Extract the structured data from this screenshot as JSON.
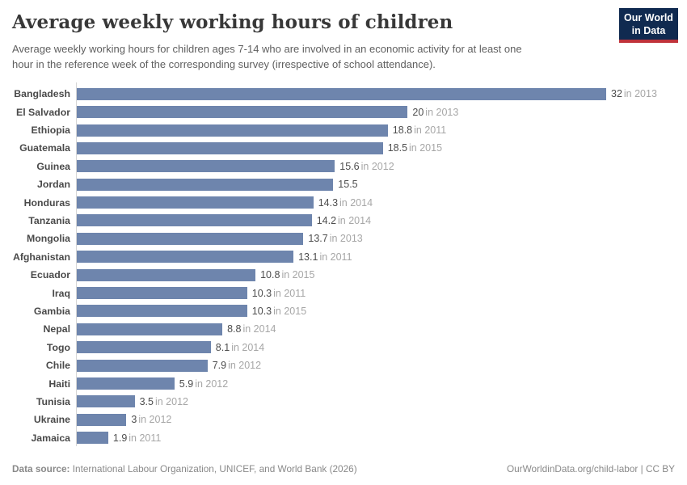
{
  "header": {
    "title": "Average weekly working hours of children",
    "subtitle": {
      "line1": "Average weekly working hours for children ages 7-14 who are involved in an economic activity for at least one",
      "line2": "hour in the reference week of the corresponding survey (irrespective of school attendance)."
    },
    "logo": {
      "line1": "Our World",
      "line2": "in Data"
    }
  },
  "chart_data": {
    "type": "bar",
    "orientation": "horizontal",
    "title": "Average weekly working hours of children",
    "xlabel": "",
    "ylabel": "",
    "xlim": [
      0,
      32
    ],
    "grid": false,
    "legend": false,
    "categories": [
      "Bangladesh",
      "El Salvador",
      "Ethiopia",
      "Guatemala",
      "Guinea",
      "Jordan",
      "Honduras",
      "Tanzania",
      "Mongolia",
      "Afghanistan",
      "Ecuador",
      "Iraq",
      "Gambia",
      "Nepal",
      "Togo",
      "Chile",
      "Haiti",
      "Tunisia",
      "Ukraine",
      "Jamaica"
    ],
    "values": [
      32,
      20,
      18.8,
      18.5,
      15.6,
      15.5,
      14.3,
      14.2,
      13.7,
      13.1,
      10.8,
      10.3,
      10.3,
      8.8,
      8.1,
      7.9,
      5.9,
      3.5,
      3,
      1.9
    ],
    "rows": [
      {
        "country": "Bangladesh",
        "value": 32,
        "display_value": "32",
        "year_note": "in 2013"
      },
      {
        "country": "El Salvador",
        "value": 20,
        "display_value": "20",
        "year_note": "in 2013"
      },
      {
        "country": "Ethiopia",
        "value": 18.8,
        "display_value": "18.8",
        "year_note": "in 2011"
      },
      {
        "country": "Guatemala",
        "value": 18.5,
        "display_value": "18.5",
        "year_note": "in 2015"
      },
      {
        "country": "Guinea",
        "value": 15.6,
        "display_value": "15.6",
        "year_note": "in 2012"
      },
      {
        "country": "Jordan",
        "value": 15.5,
        "display_value": "15.5",
        "year_note": ""
      },
      {
        "country": "Honduras",
        "value": 14.3,
        "display_value": "14.3",
        "year_note": "in 2014"
      },
      {
        "country": "Tanzania",
        "value": 14.2,
        "display_value": "14.2",
        "year_note": "in 2014"
      },
      {
        "country": "Mongolia",
        "value": 13.7,
        "display_value": "13.7",
        "year_note": "in 2013"
      },
      {
        "country": "Afghanistan",
        "value": 13.1,
        "display_value": "13.1",
        "year_note": "in 2011"
      },
      {
        "country": "Ecuador",
        "value": 10.8,
        "display_value": "10.8",
        "year_note": "in 2015"
      },
      {
        "country": "Iraq",
        "value": 10.3,
        "display_value": "10.3",
        "year_note": "in 2011"
      },
      {
        "country": "Gambia",
        "value": 10.3,
        "display_value": "10.3",
        "year_note": "in 2015"
      },
      {
        "country": "Nepal",
        "value": 8.8,
        "display_value": "8.8",
        "year_note": "in 2014"
      },
      {
        "country": "Togo",
        "value": 8.1,
        "display_value": "8.1",
        "year_note": "in 2014"
      },
      {
        "country": "Chile",
        "value": 7.9,
        "display_value": "7.9",
        "year_note": "in 2012"
      },
      {
        "country": "Haiti",
        "value": 5.9,
        "display_value": "5.9",
        "year_note": "in 2012"
      },
      {
        "country": "Tunisia",
        "value": 3.5,
        "display_value": "3.5",
        "year_note": "in 2012"
      },
      {
        "country": "Ukraine",
        "value": 3,
        "display_value": "3",
        "year_note": "in 2012"
      },
      {
        "country": "Jamaica",
        "value": 1.9,
        "display_value": "1.9",
        "year_note": "in 2011"
      }
    ]
  },
  "footer": {
    "source_label": "Data source:",
    "source_text": "International Labour Organization, UNICEF, and World Bank (2026)",
    "right_text": "OurWorldinData.org/child-labor | CC BY"
  },
  "colors": {
    "bar-color": "#6e85ad",
    "logo-navy": "#102a50",
    "logo-red": "#c0333b",
    "title-text": "#383838",
    "subtitle-text": "#5f5f5f",
    "country-label": "#4a4a4a",
    "value-text": "#4d4d4d",
    "year-text": "#a6a6a6",
    "axis-line": "#d6d6d6",
    "footer-text": "#898989"
  }
}
